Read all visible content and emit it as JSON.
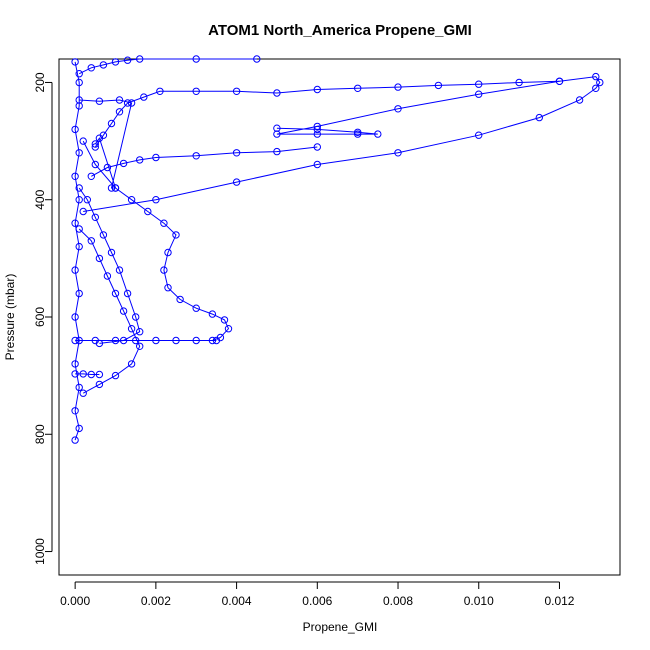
{
  "chart_data": {
    "type": "line",
    "title": "ATOM1 North_America Propene_GMI",
    "xlabel": "Propene_GMI",
    "ylabel": "Pressure (mbar)",
    "xlim": [
      -0.0004,
      0.0135
    ],
    "ylim": [
      1040,
      160
    ],
    "y_reversed": true,
    "x_ticks": [
      0.0,
      0.002,
      0.004,
      0.006,
      0.008,
      0.01,
      0.012
    ],
    "x_tick_labels": [
      "0.000",
      "0.002",
      "0.004",
      "0.006",
      "0.008",
      "0.010",
      "0.012"
    ],
    "y_ticks": [
      200,
      400,
      600,
      800,
      1000
    ],
    "y_tick_labels": [
      "200",
      "400",
      "600",
      "800",
      "1000"
    ],
    "grid": false,
    "legend": "none",
    "marker": "open-circle",
    "color": "#0000ff",
    "series": [
      {
        "profile": "column near zero",
        "points": [
          [
            0.0,
            165
          ],
          [
            0.0001,
            200
          ],
          [
            0.0001,
            240
          ],
          [
            0.0,
            280
          ],
          [
            0.0001,
            320
          ],
          [
            0.0,
            360
          ],
          [
            0.0001,
            400
          ],
          [
            0.0,
            440
          ],
          [
            0.0001,
            480
          ],
          [
            0.0,
            520
          ],
          [
            0.0001,
            560
          ],
          [
            0.0,
            600
          ],
          [
            0.0001,
            640
          ],
          [
            0.0,
            680
          ],
          [
            0.0001,
            720
          ],
          [
            0.0,
            760
          ],
          [
            0.0001,
            790
          ],
          [
            0.0,
            810
          ]
        ]
      },
      {
        "profile": "lower tropospheric bulge",
        "points": [
          [
            0.0001,
            450
          ],
          [
            0.0004,
            470
          ],
          [
            0.0006,
            500
          ],
          [
            0.0008,
            530
          ],
          [
            0.001,
            560
          ],
          [
            0.0012,
            590
          ],
          [
            0.0014,
            620
          ],
          [
            0.0016,
            650
          ],
          [
            0.0014,
            680
          ],
          [
            0.001,
            700
          ],
          [
            0.0006,
            715
          ],
          [
            0.0002,
            730
          ]
        ]
      },
      {
        "profile": "second bulge",
        "points": [
          [
            0.0001,
            380
          ],
          [
            0.0003,
            400
          ],
          [
            0.0005,
            430
          ],
          [
            0.0007,
            460
          ],
          [
            0.0009,
            490
          ],
          [
            0.0011,
            520
          ],
          [
            0.0013,
            560
          ],
          [
            0.0015,
            600
          ],
          [
            0.0016,
            625
          ],
          [
            0.0012,
            640
          ],
          [
            0.0006,
            645
          ]
        ]
      },
      {
        "profile": "large bulge",
        "points": [
          [
            0.0002,
            300
          ],
          [
            0.0005,
            340
          ],
          [
            0.001,
            380
          ],
          [
            0.0014,
            400
          ],
          [
            0.0018,
            420
          ],
          [
            0.0022,
            440
          ],
          [
            0.0025,
            460
          ],
          [
            0.0023,
            490
          ],
          [
            0.0022,
            520
          ],
          [
            0.0023,
            550
          ],
          [
            0.0026,
            570
          ],
          [
            0.003,
            585
          ],
          [
            0.0034,
            595
          ],
          [
            0.0037,
            605
          ],
          [
            0.0038,
            620
          ],
          [
            0.0036,
            635
          ],
          [
            0.0034,
            640
          ]
        ]
      },
      {
        "profile": "horizontal at 640",
        "points": [
          [
            0.0,
            640
          ],
          [
            0.0005,
            640
          ],
          [
            0.001,
            640
          ],
          [
            0.0015,
            640
          ],
          [
            0.002,
            640
          ],
          [
            0.0025,
            640
          ],
          [
            0.003,
            640
          ],
          [
            0.0035,
            640
          ]
        ]
      },
      {
        "profile": "horizontal at 700",
        "points": [
          [
            0.0,
            697
          ],
          [
            0.0002,
            697
          ],
          [
            0.0004,
            698
          ],
          [
            0.0006,
            698
          ]
        ]
      },
      {
        "profile": "upper excursion to 0.013",
        "points": [
          [
            0.0002,
            420
          ],
          [
            0.002,
            400
          ],
          [
            0.004,
            370
          ],
          [
            0.006,
            340
          ],
          [
            0.008,
            320
          ],
          [
            0.01,
            290
          ],
          [
            0.0115,
            260
          ],
          [
            0.0125,
            230
          ],
          [
            0.0129,
            210
          ],
          [
            0.013,
            200
          ],
          [
            0.0129,
            190
          ],
          [
            0.012,
            198
          ],
          [
            0.01,
            220
          ],
          [
            0.008,
            245
          ],
          [
            0.006,
            275
          ],
          [
            0.005,
            288
          ],
          [
            0.006,
            288
          ],
          [
            0.007,
            288
          ],
          [
            0.0075,
            288
          ],
          [
            0.007,
            285
          ],
          [
            0.006,
            280
          ],
          [
            0.005,
            278
          ]
        ]
      },
      {
        "profile": "sloped upper line",
        "points": [
          [
            0.0005,
            310
          ],
          [
            0.0007,
            290
          ],
          [
            0.0009,
            270
          ],
          [
            0.0011,
            250
          ],
          [
            0.0013,
            235
          ],
          [
            0.0017,
            225
          ],
          [
            0.0021,
            215
          ],
          [
            0.003,
            215
          ],
          [
            0.004,
            215
          ],
          [
            0.005,
            218
          ],
          [
            0.006,
            212
          ],
          [
            0.007,
            210
          ],
          [
            0.008,
            208
          ],
          [
            0.009,
            205
          ],
          [
            0.01,
            203
          ],
          [
            0.011,
            200
          ],
          [
            0.012,
            198
          ]
        ]
      },
      {
        "profile": "top traces",
        "points": [
          [
            0.0001,
            185
          ],
          [
            0.0004,
            175
          ],
          [
            0.0007,
            170
          ],
          [
            0.001,
            165
          ],
          [
            0.0013,
            162
          ],
          [
            0.0016,
            160
          ],
          [
            0.003,
            160
          ],
          [
            0.0045,
            160
          ]
        ]
      },
      {
        "profile": "line 330",
        "points": [
          [
            0.0004,
            360
          ],
          [
            0.0008,
            345
          ],
          [
            0.0012,
            338
          ],
          [
            0.0016,
            332
          ],
          [
            0.002,
            328
          ],
          [
            0.003,
            325
          ],
          [
            0.004,
            320
          ],
          [
            0.005,
            318
          ],
          [
            0.006,
            310
          ]
        ]
      },
      {
        "profile": "small excursions",
        "points": [
          [
            0.0001,
            230
          ],
          [
            0.0006,
            232
          ],
          [
            0.0011,
            230
          ],
          [
            0.0014,
            235
          ],
          [
            0.0009,
            380
          ],
          [
            0.001,
            380
          ],
          [
            0.0006,
            295
          ],
          [
            0.0005,
            305
          ]
        ]
      }
    ]
  }
}
